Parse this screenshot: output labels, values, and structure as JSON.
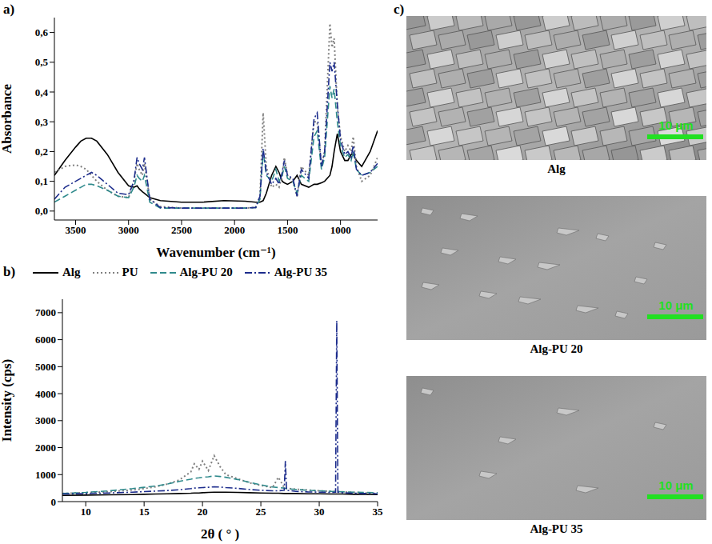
{
  "chart_data": [
    {
      "panel": "a)",
      "type": "line",
      "x_label": "Wavenumber (cm⁻¹)",
      "y_label": "Absorbance",
      "xlim": [
        3700,
        650
      ],
      "xticks": [
        3500,
        3000,
        2500,
        2000,
        1500,
        1000
      ],
      "ylim": [
        -0.03,
        0.65
      ],
      "yticks": [
        {
          "value": 0,
          "label": "0,0"
        },
        {
          "value": 0.1,
          "label": "0,1"
        },
        {
          "value": 0.2,
          "label": "0,2"
        },
        {
          "value": 0.3,
          "label": "0,3"
        },
        {
          "value": 0.4,
          "label": "0,4"
        },
        {
          "value": 0.5,
          "label": "0,5"
        },
        {
          "value": 0.6,
          "label": "0,6"
        }
      ],
      "grid": false,
      "x": [
        3700,
        3600,
        3500,
        3450,
        3400,
        3350,
        3300,
        3200,
        3100,
        3000,
        2950,
        2920,
        2900,
        2870,
        2850,
        2800,
        2700,
        2500,
        2300,
        2100,
        1900,
        1800,
        1760,
        1730,
        1700,
        1650,
        1610,
        1580,
        1550,
        1530,
        1500,
        1450,
        1410,
        1370,
        1300,
        1250,
        1220,
        1180,
        1150,
        1100,
        1080,
        1060,
        1030,
        1000,
        960,
        930,
        900,
        880,
        850,
        800,
        720,
        650
      ],
      "series": [
        {
          "name": "Alg",
          "color": "#000000",
          "line_style": "solid",
          "values": [
            0.12,
            0.17,
            0.215,
            0.235,
            0.245,
            0.245,
            0.235,
            0.19,
            0.13,
            0.085,
            0.08,
            0.085,
            0.075,
            0.065,
            0.06,
            0.045,
            0.035,
            0.03,
            0.03,
            0.035,
            0.033,
            0.03,
            0.03,
            0.035,
            0.06,
            0.12,
            0.15,
            0.13,
            0.1,
            0.095,
            0.09,
            0.1,
            0.12,
            0.09,
            0.08,
            0.09,
            0.09,
            0.095,
            0.1,
            0.12,
            0.15,
            0.2,
            0.26,
            0.2,
            0.17,
            0.17,
            0.19,
            0.19,
            0.17,
            0.15,
            0.2,
            0.27
          ]
        },
        {
          "name": "PU",
          "color": "#808080",
          "line_style": "dotted",
          "values": [
            0.13,
            0.15,
            0.155,
            0.15,
            0.14,
            0.12,
            0.1,
            0.07,
            0.05,
            0.045,
            0.1,
            0.16,
            0.14,
            0.12,
            0.16,
            0.04,
            0.015,
            0.01,
            0.01,
            0.01,
            0.01,
            0.012,
            0.05,
            0.33,
            0.15,
            0.08,
            0.09,
            0.08,
            0.12,
            0.18,
            0.12,
            0.1,
            0.05,
            0.15,
            0.12,
            0.3,
            0.3,
            0.15,
            0.2,
            0.63,
            0.55,
            0.58,
            0.35,
            0.25,
            0.2,
            0.22,
            0.2,
            0.25,
            0.15,
            0.1,
            0.12,
            0.18
          ]
        },
        {
          "name": "Alg-PU 20",
          "color": "#2f8a8c",
          "line_style": "dashed",
          "values": [
            0.03,
            0.05,
            0.07,
            0.08,
            0.09,
            0.09,
            0.085,
            0.07,
            0.05,
            0.045,
            0.08,
            0.12,
            0.11,
            0.1,
            0.12,
            0.03,
            0.01,
            0.01,
            0.01,
            0.01,
            0.01,
            0.012,
            0.04,
            0.2,
            0.12,
            0.1,
            0.14,
            0.1,
            0.12,
            0.15,
            0.11,
            0.1,
            0.06,
            0.12,
            0.1,
            0.25,
            0.27,
            0.14,
            0.18,
            0.42,
            0.38,
            0.41,
            0.3,
            0.22,
            0.18,
            0.19,
            0.17,
            0.2,
            0.14,
            0.12,
            0.13,
            0.15
          ]
        },
        {
          "name": "Alg-PU 35",
          "color": "#1c2c8c",
          "line_style": "dashdot",
          "values": [
            0.04,
            0.08,
            0.1,
            0.11,
            0.12,
            0.13,
            0.12,
            0.09,
            0.06,
            0.055,
            0.1,
            0.18,
            0.16,
            0.14,
            0.18,
            0.04,
            0.012,
            0.01,
            0.01,
            0.01,
            0.01,
            0.012,
            0.05,
            0.21,
            0.13,
            0.09,
            0.11,
            0.09,
            0.13,
            0.17,
            0.12,
            0.11,
            0.05,
            0.14,
            0.11,
            0.31,
            0.33,
            0.15,
            0.2,
            0.5,
            0.47,
            0.5,
            0.36,
            0.24,
            0.19,
            0.2,
            0.18,
            0.22,
            0.14,
            0.12,
            0.13,
            0.16
          ]
        }
      ]
    },
    {
      "panel": "b)",
      "type": "line",
      "x_label": "2θ ( ° )",
      "y_label": "Intensity (cps)",
      "xlim": [
        8,
        35
      ],
      "xticks": [
        10,
        15,
        20,
        25,
        30,
        35
      ],
      "ylim": [
        0,
        7500
      ],
      "yticks": [
        0,
        1000,
        2000,
        3000,
        4000,
        5000,
        6000,
        7000
      ],
      "grid": false,
      "legend": "top",
      "x": [
        8,
        10,
        12,
        14,
        15,
        16,
        17,
        18,
        19,
        19.3,
        19.7,
        20,
        20.5,
        21,
        21.5,
        22,
        23,
        24,
        25,
        26,
        26.5,
        27,
        27.1,
        27.2,
        28,
        29,
        30,
        31,
        31.4,
        31.5,
        31.6,
        32,
        33,
        34,
        35
      ],
      "series": [
        {
          "name": "Alg",
          "color": "#000000",
          "line_style": "solid",
          "values": [
            230,
            240,
            250,
            260,
            270,
            280,
            290,
            300,
            310,
            320,
            320,
            330,
            340,
            350,
            350,
            350,
            340,
            330,
            320,
            310,
            310,
            300,
            300,
            300,
            300,
            290,
            290,
            280,
            280,
            280,
            280,
            280,
            270,
            270,
            260
          ]
        },
        {
          "name": "PU",
          "color": "#808080",
          "line_style": "dotted",
          "values": [
            300,
            330,
            370,
            430,
            480,
            550,
            650,
            800,
            1100,
            1400,
            1200,
            1500,
            1150,
            1700,
            1300,
            1000,
            850,
            700,
            600,
            520,
            900,
            520,
            500,
            490,
            460,
            430,
            400,
            380,
            370,
            370,
            370,
            360,
            340,
            320,
            300
          ]
        },
        {
          "name": "Alg-PU 20",
          "color": "#2f8a8c",
          "line_style": "dashed",
          "values": [
            300,
            340,
            400,
            480,
            530,
            580,
            650,
            750,
            830,
            860,
            880,
            900,
            920,
            950,
            930,
            900,
            820,
            720,
            620,
            540,
            520,
            500,
            490,
            480,
            450,
            420,
            400,
            380,
            370,
            370,
            370,
            360,
            350,
            340,
            330
          ]
        },
        {
          "name": "Alg-PU 35",
          "color": "#1c2c8c",
          "line_style": "dashdot",
          "values": [
            280,
            300,
            320,
            350,
            370,
            390,
            410,
            440,
            480,
            500,
            510,
            520,
            530,
            550,
            540,
            520,
            490,
            450,
            420,
            400,
            400,
            420,
            1500,
            420,
            380,
            360,
            350,
            340,
            350,
            6700,
            350,
            330,
            310,
            300,
            290
          ]
        }
      ]
    }
  ],
  "sem_images": {
    "panel": "c)",
    "images": [
      {
        "caption": "Alg",
        "scale_bar": "10 μm"
      },
      {
        "caption": "Alg-PU 20",
        "scale_bar": "10 μm"
      },
      {
        "caption": "Alg-PU 35",
        "scale_bar": "10 μm"
      }
    ]
  }
}
